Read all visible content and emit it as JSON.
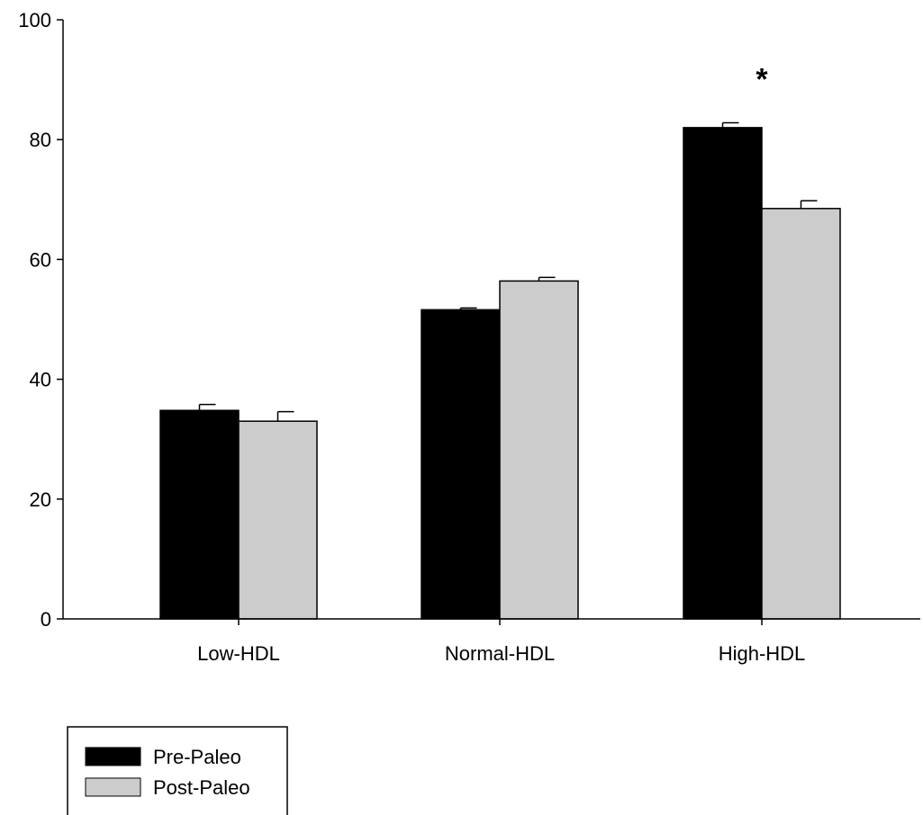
{
  "chart_data": {
    "type": "bar",
    "title": "",
    "xlabel": "",
    "ylabel": "",
    "ylim": [
      0,
      100
    ],
    "yticks": [
      0,
      20,
      40,
      60,
      80,
      100
    ],
    "categories": [
      "Low-HDL",
      "Normal-HDL",
      "High-HDL"
    ],
    "series": [
      {
        "name": "Pre-Paleo",
        "color": "#000000",
        "values": [
          34.8,
          51.6,
          82.0
        ],
        "errors": [
          1.0,
          0.3,
          0.8
        ]
      },
      {
        "name": "Post-Paleo",
        "color": "#cccccc",
        "values": [
          33.0,
          56.4,
          68.5
        ],
        "errors": [
          1.6,
          0.6,
          1.3
        ]
      }
    ],
    "annotations": [
      {
        "text": "*",
        "category": "High-HDL",
        "y": 92
      }
    ],
    "grid": false,
    "legend_position": "bottom-left"
  }
}
